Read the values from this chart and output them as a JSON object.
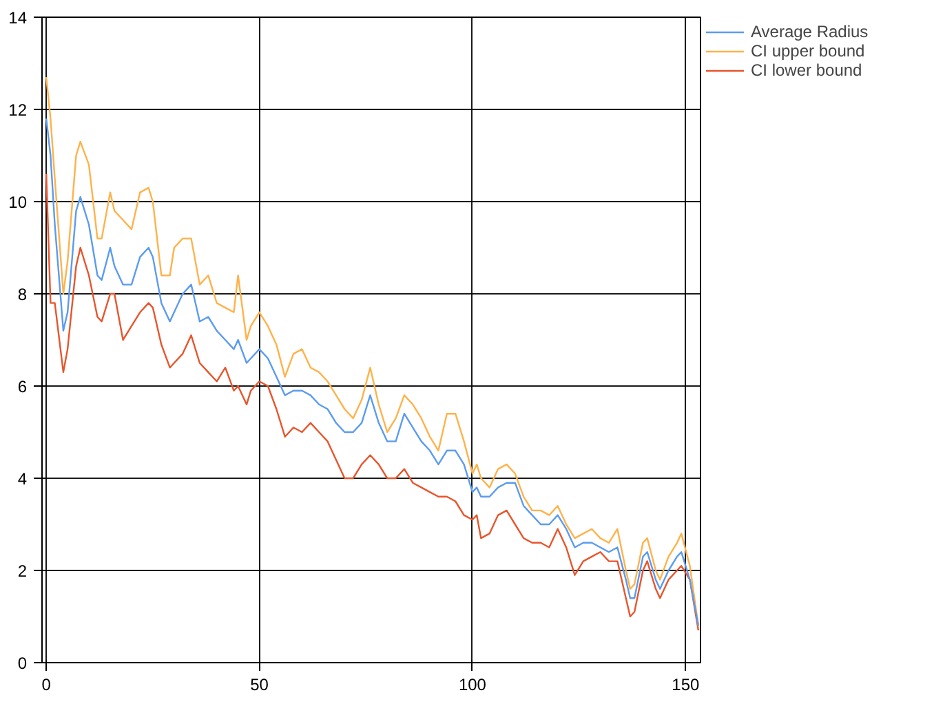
{
  "chart_data": {
    "type": "line",
    "x": [
      0,
      1,
      2,
      4,
      5,
      7,
      8,
      10,
      12,
      13,
      15,
      16,
      18,
      20,
      22,
      24,
      25,
      27,
      29,
      30,
      32,
      34,
      36,
      38,
      40,
      42,
      44,
      45,
      47,
      48,
      50,
      52,
      54,
      56,
      58,
      60,
      62,
      64,
      66,
      68,
      70,
      72,
      74,
      76,
      78,
      80,
      82,
      84,
      86,
      88,
      90,
      92,
      94,
      96,
      98,
      100,
      101,
      102,
      104,
      106,
      108,
      110,
      112,
      114,
      116,
      118,
      120,
      122,
      124,
      126,
      128,
      130,
      132,
      134,
      136,
      137,
      138,
      140,
      141,
      143,
      144,
      146,
      148,
      149,
      151,
      153
    ],
    "series": [
      {
        "name": "Average Radius",
        "color": "#5b9bf0",
        "values": [
          11.8,
          11.0,
          9.5,
          7.2,
          7.6,
          9.8,
          10.1,
          9.5,
          8.4,
          8.3,
          9.0,
          8.6,
          8.2,
          8.2,
          8.8,
          9.0,
          8.8,
          7.8,
          7.4,
          7.6,
          8.0,
          8.2,
          7.4,
          7.5,
          7.2,
          7.0,
          6.8,
          7.0,
          6.5,
          6.6,
          6.8,
          6.6,
          6.2,
          5.8,
          5.9,
          5.9,
          5.8,
          5.6,
          5.5,
          5.2,
          5.0,
          5.0,
          5.2,
          5.8,
          5.2,
          4.8,
          4.8,
          5.4,
          5.1,
          4.8,
          4.6,
          4.3,
          4.6,
          4.6,
          4.3,
          3.7,
          3.8,
          3.6,
          3.6,
          3.8,
          3.9,
          3.9,
          3.4,
          3.2,
          3.0,
          3.0,
          3.2,
          2.9,
          2.5,
          2.6,
          2.6,
          2.5,
          2.4,
          2.5,
          1.8,
          1.4,
          1.4,
          2.3,
          2.4,
          1.8,
          1.6,
          2.0,
          2.3,
          2.4,
          1.8,
          0.8
        ]
      },
      {
        "name": "CI upper bound",
        "color": "#ffb24a",
        "values": [
          12.7,
          11.8,
          10.5,
          8.0,
          8.7,
          11.0,
          11.3,
          10.8,
          9.2,
          9.2,
          10.2,
          9.8,
          9.6,
          9.4,
          10.2,
          10.3,
          10.0,
          8.4,
          8.4,
          9.0,
          9.2,
          9.2,
          8.2,
          8.4,
          7.8,
          7.7,
          7.6,
          8.4,
          7.0,
          7.3,
          7.6,
          7.3,
          6.9,
          6.2,
          6.7,
          6.8,
          6.4,
          6.3,
          6.1,
          5.8,
          5.5,
          5.3,
          5.7,
          6.4,
          5.6,
          5.0,
          5.3,
          5.8,
          5.6,
          5.3,
          4.9,
          4.6,
          5.4,
          5.4,
          4.8,
          4.1,
          4.3,
          4.0,
          3.8,
          4.2,
          4.3,
          4.1,
          3.6,
          3.3,
          3.3,
          3.2,
          3.4,
          3.0,
          2.7,
          2.8,
          2.9,
          2.7,
          2.6,
          2.9,
          2.0,
          1.6,
          1.7,
          2.6,
          2.7,
          2.0,
          1.8,
          2.3,
          2.6,
          2.8,
          2.1,
          0.8
        ]
      },
      {
        "name": "CI lower bound",
        "color": "#e8552c",
        "values": [
          10.6,
          7.8,
          7.8,
          6.3,
          6.8,
          8.6,
          9.0,
          8.4,
          7.5,
          7.4,
          8.0,
          8.0,
          7.0,
          7.3,
          7.6,
          7.8,
          7.7,
          6.9,
          6.4,
          6.5,
          6.7,
          7.1,
          6.5,
          6.3,
          6.1,
          6.4,
          5.9,
          6.0,
          5.6,
          5.9,
          6.1,
          6.0,
          5.5,
          4.9,
          5.1,
          5.0,
          5.2,
          5.0,
          4.8,
          4.4,
          4.0,
          4.0,
          4.3,
          4.5,
          4.3,
          4.0,
          4.0,
          4.2,
          3.9,
          3.8,
          3.7,
          3.6,
          3.6,
          3.5,
          3.2,
          3.1,
          3.2,
          2.7,
          2.8,
          3.2,
          3.3,
          3.0,
          2.7,
          2.6,
          2.6,
          2.5,
          2.9,
          2.5,
          1.9,
          2.2,
          2.3,
          2.4,
          2.2,
          2.2,
          1.4,
          1.0,
          1.1,
          2.0,
          2.2,
          1.6,
          1.4,
          1.8,
          2.0,
          2.1,
          1.8,
          0.7
        ]
      }
    ],
    "xlim": [
      -1,
      153.5
    ],
    "ylim": [
      0,
      14
    ],
    "xticks": [
      0,
      50,
      100,
      150
    ],
    "yticks": [
      0,
      2,
      4,
      6,
      8,
      10,
      12,
      14
    ],
    "grid": true,
    "legend": "top right",
    "marker": "none",
    "line_style": "solid"
  }
}
